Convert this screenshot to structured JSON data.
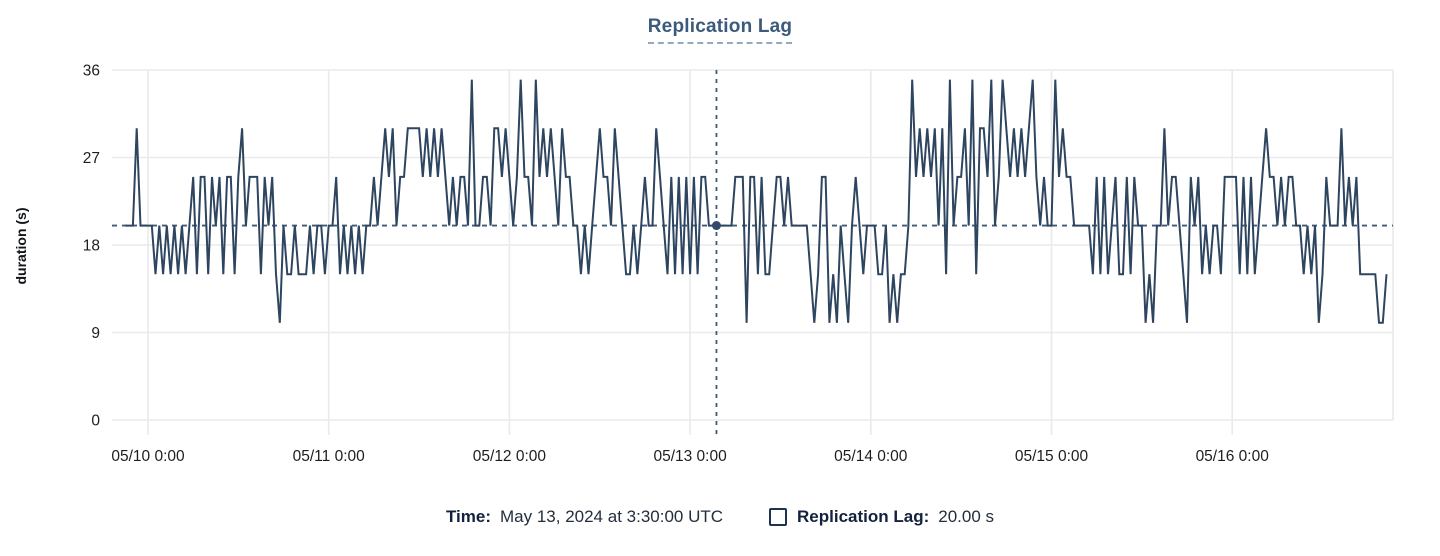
{
  "title": {
    "text": "Replication Lag"
  },
  "y_axis": {
    "label": "duration (s)",
    "ticks": [
      0,
      9,
      18,
      27,
      36
    ]
  },
  "x_axis": {
    "tick_hours": [
      0,
      24,
      48,
      72,
      96,
      120,
      144
    ],
    "tick_labels": [
      "05/10 0:00",
      "05/11 0:00",
      "05/12 0:00",
      "05/13 0:00",
      "05/14 0:00",
      "05/15 0:00",
      "05/16 0:00"
    ]
  },
  "tooltip": {
    "time_label": "Time:",
    "time_value": "May 13, 2024 at 3:30:00 UTC",
    "series_label": "Replication Lag:",
    "series_value": "20.00 s"
  },
  "colors": {
    "series_line": "#2e4560",
    "crosshair": "#3d5a78",
    "dot": "#32496b",
    "grid": "#e9eaec",
    "title": "#3c5a7c",
    "axis_text": "#1d1e20",
    "legend_label": "#13213d"
  },
  "chart_data": {
    "type": "line",
    "series_name": "Replication Lag",
    "unit": "s",
    "title": "Replication Lag",
    "ylabel": "duration (s)",
    "ylim": [
      0,
      36
    ],
    "yticks": [
      0,
      9,
      18,
      27,
      36
    ],
    "grid": true,
    "x_start_hours": -3,
    "x_step_hours": 0.5,
    "x_reference_label": "hours relative to 05/10 0:00",
    "crosshair": {
      "x_hours": 75.5,
      "value": 20
    },
    "values": [
      20,
      20,
      20,
      30,
      20,
      20,
      20,
      20,
      15,
      20,
      15,
      20,
      15,
      20,
      15,
      20,
      15,
      20,
      25,
      15,
      25,
      25,
      15,
      25,
      20,
      25,
      15,
      25,
      25,
      15,
      25,
      30,
      20,
      25,
      25,
      25,
      15,
      25,
      20,
      25,
      15,
      10,
      20,
      15,
      15,
      20,
      15,
      15,
      15,
      20,
      15,
      20,
      20,
      15,
      20,
      20,
      25,
      15,
      20,
      15,
      20,
      15,
      20,
      15,
      20,
      20,
      25,
      20,
      25,
      30,
      25,
      30,
      20,
      25,
      25,
      30,
      30,
      30,
      30,
      25,
      30,
      25,
      30,
      25,
      30,
      25,
      20,
      25,
      20,
      25,
      25,
      20,
      35,
      20,
      20,
      25,
      25,
      20,
      30,
      30,
      25,
      30,
      25,
      20,
      25,
      35,
      25,
      25,
      20,
      35,
      25,
      30,
      25,
      30,
      25,
      20,
      30,
      25,
      25,
      20,
      20,
      15,
      20,
      15,
      20,
      25,
      30,
      25,
      25,
      20,
      30,
      25,
      20,
      15,
      15,
      20,
      15,
      20,
      25,
      20,
      20,
      30,
      25,
      20,
      15,
      25,
      15,
      25,
      15,
      25,
      15,
      25,
      15,
      25,
      25,
      20,
      20,
      20,
      20,
      20,
      20,
      20,
      25,
      25,
      25,
      10,
      25,
      25,
      15,
      25,
      15,
      15,
      20,
      25,
      25,
      20,
      25,
      20,
      20,
      20,
      20,
      20,
      15,
      10,
      15,
      25,
      25,
      10,
      15,
      10,
      20,
      15,
      10,
      20,
      25,
      20,
      15,
      20,
      20,
      20,
      15,
      15,
      20,
      10,
      15,
      10,
      15,
      15,
      20,
      35,
      25,
      30,
      25,
      30,
      25,
      30,
      20,
      30,
      15,
      35,
      20,
      25,
      25,
      30,
      20,
      35,
      15,
      30,
      30,
      25,
      35,
      20,
      25,
      35,
      30,
      25,
      30,
      25,
      30,
      25,
      30,
      35,
      25,
      20,
      25,
      20,
      20,
      35,
      25,
      30,
      25,
      25,
      20,
      20,
      20,
      20,
      20,
      15,
      25,
      15,
      25,
      15,
      20,
      25,
      15,
      15,
      25,
      15,
      25,
      20,
      20,
      10,
      15,
      10,
      20,
      20,
      30,
      20,
      25,
      25,
      20,
      15,
      10,
      25,
      20,
      25,
      15,
      20,
      15,
      20,
      20,
      15,
      25,
      25,
      25,
      25,
      15,
      25,
      15,
      25,
      15,
      20,
      25,
      30,
      25,
      25,
      20,
      25,
      20,
      25,
      25,
      20,
      20,
      15,
      20,
      15,
      20,
      10,
      15,
      25,
      20,
      20,
      20,
      30,
      20,
      25,
      20,
      25,
      15,
      15,
      15,
      15,
      15,
      10,
      10,
      15
    ]
  }
}
